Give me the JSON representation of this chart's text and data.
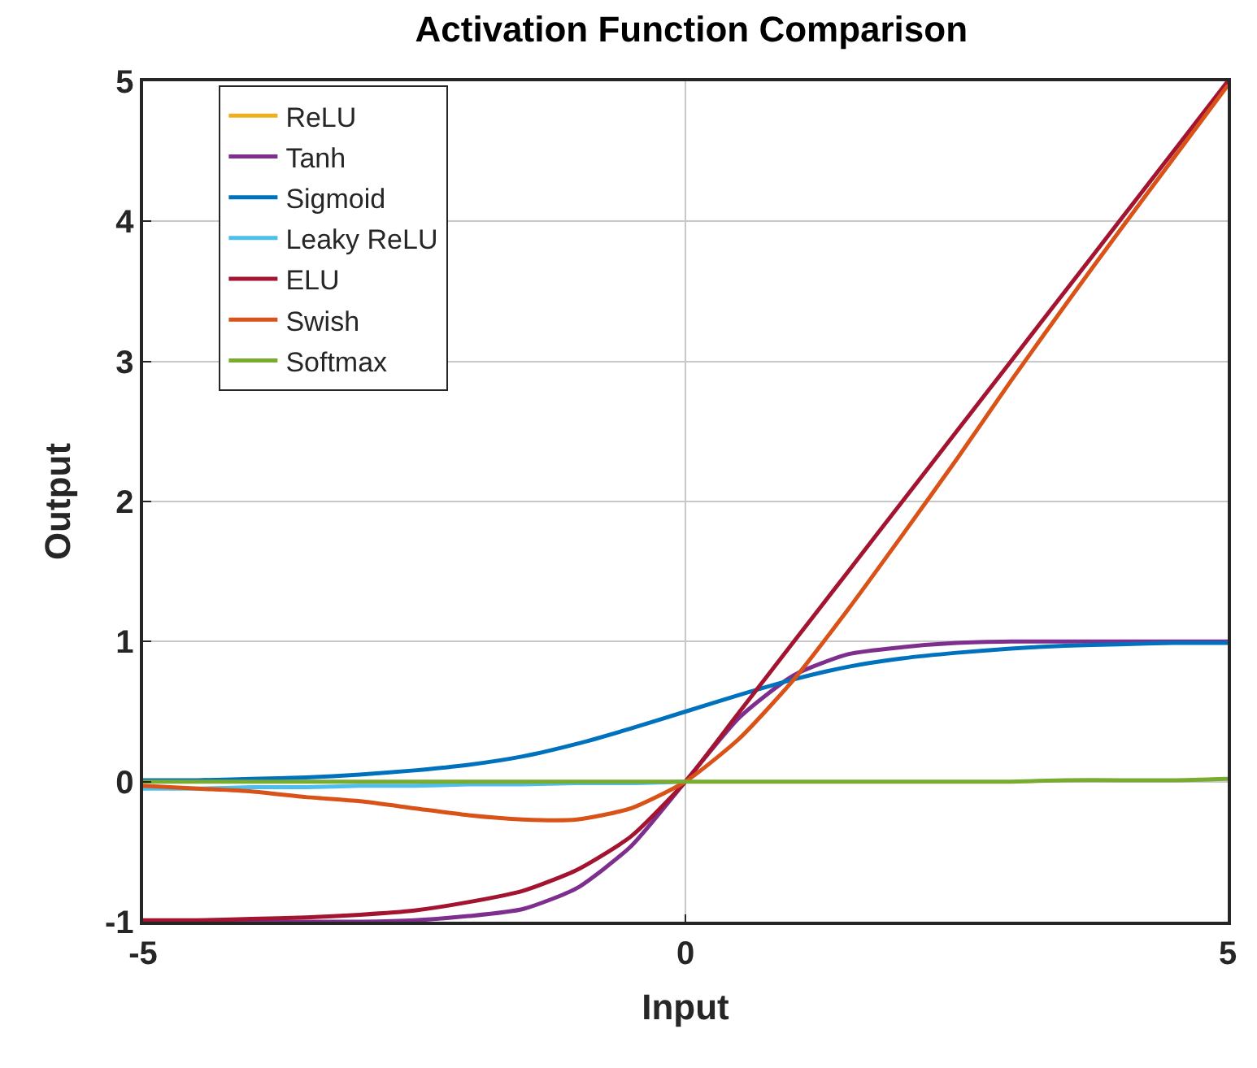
{
  "chart_data": {
    "type": "line",
    "title": "Activation Function Comparison",
    "xlabel": "Input",
    "ylabel": "Output",
    "x": [
      -5,
      -4.5,
      -4,
      -3.5,
      -3,
      -2.5,
      -2,
      -1.5,
      -1,
      -0.5,
      0,
      0.5,
      1,
      1.5,
      2,
      2.5,
      3,
      3.5,
      4,
      4.5,
      5
    ],
    "xlim": [
      -5,
      5
    ],
    "xticks": [
      -5,
      0,
      5
    ],
    "ylim": [
      -1,
      5
    ],
    "yticks": [
      -1,
      0,
      1,
      2,
      3,
      4,
      5
    ],
    "grid": true,
    "legend": "top left",
    "series": [
      {
        "name": "ReLU",
        "color": "#edb120",
        "values": [
          null,
          null,
          null,
          null,
          null,
          null,
          null,
          null,
          null,
          null,
          null,
          null,
          null,
          null,
          null,
          null,
          null,
          null,
          null,
          null,
          null
        ]
      },
      {
        "name": "Tanh",
        "color": "#7e2f8e",
        "values": [
          -1.0,
          -1.0,
          -1.0,
          -1.0,
          -1.0,
          -0.99,
          -0.96,
          -0.91,
          -0.76,
          -0.46,
          0,
          0.46,
          0.76,
          0.91,
          0.96,
          0.99,
          1.0,
          1.0,
          1.0,
          1.0,
          1.0
        ]
      },
      {
        "name": "Sigmoid",
        "color": "#0072bd",
        "values": [
          0.01,
          0.01,
          0.02,
          0.03,
          0.05,
          0.08,
          0.12,
          0.18,
          0.27,
          0.38,
          0.5,
          0.62,
          0.73,
          0.82,
          0.88,
          0.92,
          0.95,
          0.97,
          0.98,
          0.99,
          0.99
        ]
      },
      {
        "name": "Leaky ReLU",
        "color": "#4dbeee",
        "values": [
          -0.05,
          -0.05,
          -0.04,
          -0.04,
          -0.03,
          -0.03,
          -0.02,
          -0.02,
          -0.01,
          -0.01,
          0,
          null,
          null,
          null,
          null,
          null,
          null,
          null,
          null,
          null,
          null
        ]
      },
      {
        "name": "ELU",
        "color": "#a2142f",
        "values": [
          -0.99,
          -0.99,
          -0.98,
          -0.97,
          -0.95,
          -0.92,
          -0.86,
          -0.78,
          -0.63,
          -0.39,
          0,
          0.5,
          1,
          1.5,
          2,
          2.5,
          3,
          3.5,
          4,
          4.5,
          5
        ]
      },
      {
        "name": "Swish",
        "color": "#d95319",
        "values": [
          -0.03,
          -0.05,
          -0.07,
          -0.11,
          -0.14,
          -0.19,
          -0.24,
          -0.27,
          -0.27,
          -0.19,
          0,
          0.31,
          0.73,
          1.23,
          1.76,
          2.3,
          2.86,
          3.4,
          3.93,
          4.45,
          4.97
        ]
      },
      {
        "name": "Softmax",
        "color": "#77ac30",
        "values": [
          0,
          0,
          0,
          0,
          0,
          0,
          0,
          0,
          0,
          0,
          0,
          0,
          0,
          0,
          0,
          0,
          0,
          0.01,
          0.01,
          0.01,
          0.02
        ]
      }
    ]
  }
}
